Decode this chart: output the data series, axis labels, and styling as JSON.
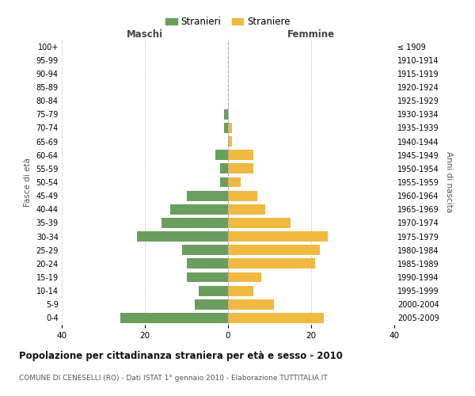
{
  "age_groups": [
    "0-4",
    "5-9",
    "10-14",
    "15-19",
    "20-24",
    "25-29",
    "30-34",
    "35-39",
    "40-44",
    "45-49",
    "50-54",
    "55-59",
    "60-64",
    "65-69",
    "70-74",
    "75-79",
    "80-84",
    "85-89",
    "90-94",
    "95-99",
    "100+"
  ],
  "birth_years": [
    "2005-2009",
    "2000-2004",
    "1995-1999",
    "1990-1994",
    "1985-1989",
    "1980-1984",
    "1975-1979",
    "1970-1974",
    "1965-1969",
    "1960-1964",
    "1955-1959",
    "1950-1954",
    "1945-1949",
    "1940-1944",
    "1935-1939",
    "1930-1934",
    "1925-1929",
    "1920-1924",
    "1915-1919",
    "1910-1914",
    "≤ 1909"
  ],
  "males": [
    26,
    8,
    7,
    10,
    10,
    11,
    22,
    16,
    14,
    10,
    2,
    2,
    3,
    0,
    1,
    1,
    0,
    0,
    0,
    0,
    0
  ],
  "females": [
    23,
    11,
    6,
    8,
    21,
    22,
    24,
    15,
    9,
    7,
    3,
    6,
    6,
    1,
    1,
    0,
    0,
    0,
    0,
    0,
    0
  ],
  "male_color": "#6a9e5e",
  "female_color": "#f0b940",
  "background_color": "#ffffff",
  "grid_color": "#cccccc",
  "bar_height": 0.75,
  "xlim": 40,
  "title": "Popolazione per cittadinanza straniera per età e sesso - 2010",
  "subtitle": "COMUNE DI CENESELLI (RO) - Dati ISTAT 1° gennaio 2010 - Elaborazione TUTTITALIA.IT",
  "legend_stranieri": "Stranieri",
  "legend_straniere": "Straniere",
  "left_label": "Maschi",
  "right_label": "Femmine",
  "ylabel_left": "Fasce di età",
  "ylabel_right": "Anni di nascita"
}
